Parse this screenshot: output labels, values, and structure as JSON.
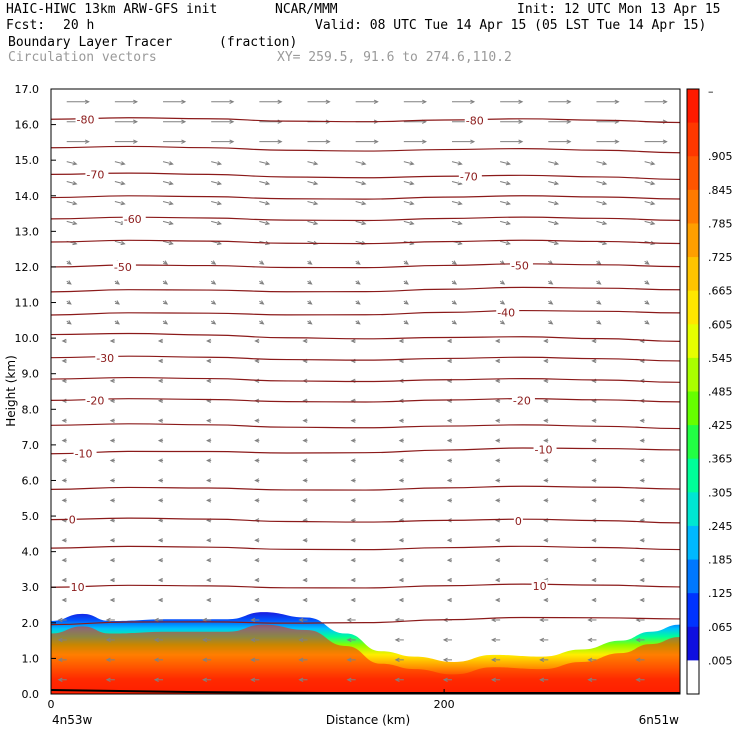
{
  "header": {
    "model": "HAIC-HIWC 13km ARW-GFS init",
    "org": "NCAR/MMM",
    "init": "Init: 12 UTC Mon 13 Apr 15",
    "fcst_label": "Fcst:",
    "fcst_value": "20 h",
    "valid": "Valid: 08 UTC Tue 14 Apr 15 (05 LST Tue 14 Apr 15)",
    "field": "Boundary Layer Tracer",
    "field_units": "(fraction)",
    "vectors": "Circulation vectors",
    "xy": "XY= 259.5, 91.6 to 274.6,110.2"
  },
  "chart_data": {
    "type": "heatmap",
    "ylabel": "Height (km)",
    "xlabel": "Distance (km)",
    "ylim": [
      0,
      17
    ],
    "xlim": [
      0,
      320
    ],
    "yticks": [
      "0.0",
      "1.0",
      "2.0",
      "3.0",
      "4.0",
      "5.0",
      "6.0",
      "7.0",
      "8.0",
      "9.0",
      "10.0",
      "11.0",
      "12.0",
      "13.0",
      "14.0",
      "15.0",
      "16.0",
      "17.0"
    ],
    "xticks": [
      {
        "value": 0,
        "label": "0"
      },
      {
        "value": 200,
        "label": "200"
      }
    ],
    "x_endpoints": {
      "left": "4n53w",
      "right": "6n51w"
    },
    "colorbar": {
      "labels": [
        "–",
        ".905",
        ".845",
        ".785",
        ".725",
        ".665",
        ".605",
        ".545",
        ".485",
        ".425",
        ".365",
        ".305",
        ".245",
        ".185",
        ".125",
        ".065",
        ".005"
      ],
      "colors": [
        "#ff1a00",
        "#ff3800",
        "#ff5500",
        "#ff7a00",
        "#ff9f00",
        "#ffc400",
        "#ffe600",
        "#e6ff00",
        "#aaff00",
        "#66ff00",
        "#22ff44",
        "#00ff99",
        "#00e6d2",
        "#00b8ff",
        "#0078ff",
        "#0033ff",
        "#1010e0",
        "#ffffff"
      ]
    },
    "tracer_top_km": [
      {
        "x": 0,
        "y": 2.05
      },
      {
        "x": 16,
        "y": 2.25
      },
      {
        "x": 30,
        "y": 2.05
      },
      {
        "x": 60,
        "y": 2.1
      },
      {
        "x": 90,
        "y": 2.1
      },
      {
        "x": 108,
        "y": 2.3
      },
      {
        "x": 130,
        "y": 2.15
      },
      {
        "x": 150,
        "y": 1.7
      },
      {
        "x": 168,
        "y": 1.2
      },
      {
        "x": 185,
        "y": 1.05
      },
      {
        "x": 205,
        "y": 0.9
      },
      {
        "x": 225,
        "y": 1.1
      },
      {
        "x": 250,
        "y": 1.05
      },
      {
        "x": 270,
        "y": 1.25
      },
      {
        "x": 290,
        "y": 1.5
      },
      {
        "x": 305,
        "y": 1.75
      },
      {
        "x": 320,
        "y": 1.95
      }
    ],
    "temperature_contours_c": [
      {
        "value": 10,
        "y0": 3.0,
        "y1": 3.05,
        "labels": [
          {
            "x": 10,
            "text": "10"
          },
          {
            "x": 245,
            "text": "10"
          }
        ]
      },
      {
        "value": 0,
        "y0": 4.9,
        "y1": 4.85,
        "labels": [
          {
            "x": 9,
            "text": "0"
          },
          {
            "x": 236,
            "text": "0"
          }
        ]
      },
      {
        "value": -10,
        "y0": 6.75,
        "y1": 6.9,
        "labels": [
          {
            "x": 12,
            "text": "-10"
          },
          {
            "x": 246,
            "text": "-10"
          }
        ]
      },
      {
        "value": -20,
        "y0": 8.25,
        "y1": 8.25,
        "labels": [
          {
            "x": 18,
            "text": "-20"
          },
          {
            "x": 235,
            "text": "-20"
          }
        ]
      },
      {
        "value": -30,
        "y0": 9.45,
        "y1": 9.4,
        "labels": [
          {
            "x": 23,
            "text": "-30"
          }
        ]
      },
      {
        "value": -40,
        "y0": 10.65,
        "y1": 10.75,
        "labels": [
          {
            "x": 227,
            "text": "-40"
          }
        ]
      },
      {
        "value": -50,
        "y0": 12.0,
        "y1": 12.05,
        "labels": [
          {
            "x": 32,
            "text": "-50"
          },
          {
            "x": 234,
            "text": "-50"
          }
        ]
      },
      {
        "value": -60,
        "y0": 13.35,
        "y1": 13.35,
        "labels": [
          {
            "x": 37,
            "text": "-60"
          }
        ]
      },
      {
        "value": -70,
        "y0": 14.6,
        "y1": 14.5,
        "labels": [
          {
            "x": 18,
            "text": "-70"
          },
          {
            "x": 208,
            "text": "-70"
          }
        ]
      },
      {
        "value": -80,
        "y0": 16.15,
        "y1": 16.1,
        "labels": [
          {
            "x": 13,
            "text": "-80"
          },
          {
            "x": 211,
            "text": "-80"
          }
        ]
      }
    ],
    "intermediate_contours_km": [
      {
        "y0": 1.95,
        "y1": 2.15
      },
      {
        "y0": 4.1,
        "y1": 4.1
      },
      {
        "y0": 5.75,
        "y1": 5.8
      },
      {
        "y0": 7.55,
        "y1": 7.5
      },
      {
        "y0": 8.85,
        "y1": 8.8
      },
      {
        "y0": 10.1,
        "y1": 9.95
      },
      {
        "y0": 11.3,
        "y1": 11.4
      },
      {
        "y0": 12.7,
        "y1": 12.7
      },
      {
        "y0": 13.95,
        "y1": 13.95
      },
      {
        "y0": 15.35,
        "y1": 15.25
      }
    ]
  }
}
